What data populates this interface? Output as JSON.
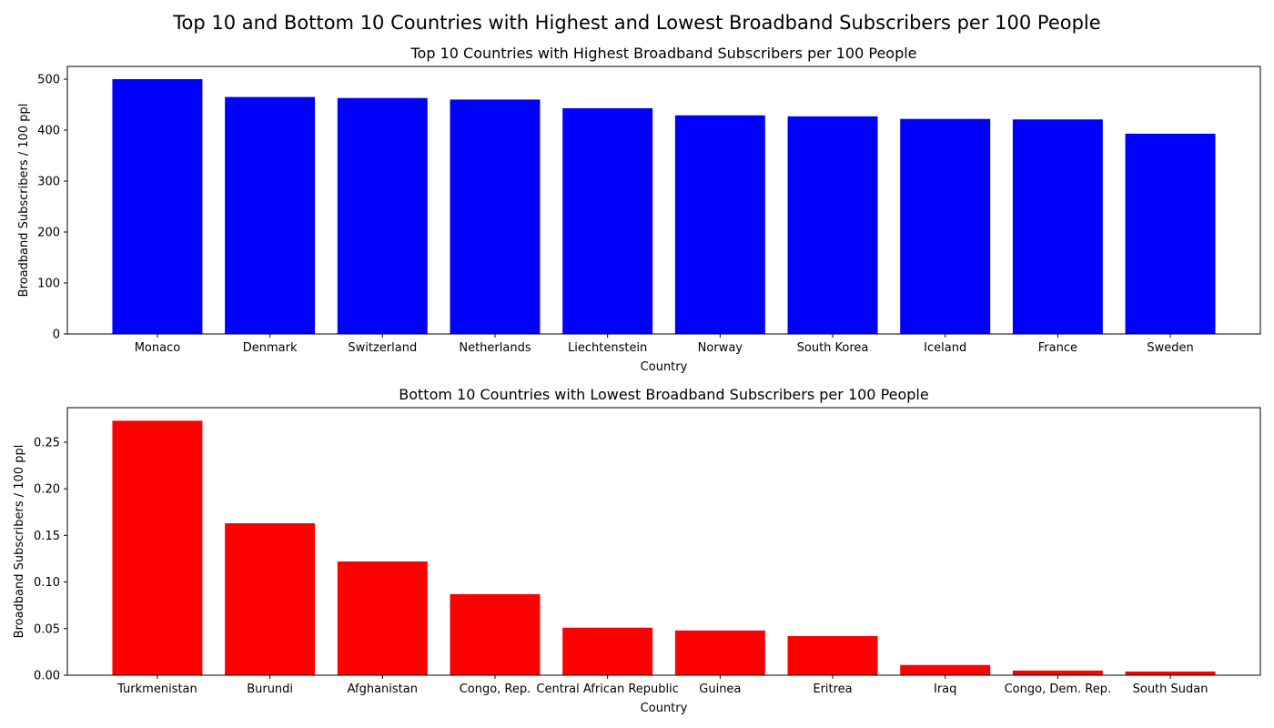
{
  "figure": {
    "suptitle": "Top 10 and Bottom 10 Countries with Highest and Lowest Broadband Subscribers per 100 People"
  },
  "chart_data": [
    {
      "type": "bar",
      "title": "Top 10 Countries with Highest Broadband Subscribers per 100 People",
      "xlabel": "Country",
      "ylabel": "Broadband Subscribers / 100 ppl",
      "categories": [
        "Monaco",
        "Denmark",
        "Switzerland",
        "Netherlands",
        "Liechtenstein",
        "Norway",
        "South Korea",
        "Iceland",
        "France",
        "Sweden"
      ],
      "values": [
        500,
        465,
        463,
        460,
        443,
        429,
        427,
        422,
        421,
        393
      ],
      "ylim": [
        0,
        525
      ],
      "yticks": [
        0,
        100,
        200,
        300,
        400,
        500
      ],
      "ytick_decimals": 0,
      "color": "#0000ff",
      "grid": false
    },
    {
      "type": "bar",
      "title": "Bottom 10 Countries with Lowest Broadband Subscribers per 100 People",
      "xlabel": "Country",
      "ylabel": "Broadband Subscribers / 100 ppl",
      "categories": [
        "Turkmenistan",
        "Burundi",
        "Afghanistan",
        "Congo, Rep.",
        "Central African Republic",
        "Guinea",
        "Eritrea",
        "Iraq",
        "Congo, Dem. Rep.",
        "South Sudan"
      ],
      "values": [
        0.273,
        0.163,
        0.122,
        0.087,
        0.051,
        0.048,
        0.042,
        0.011,
        0.005,
        0.004
      ],
      "ylim": [
        0,
        0.287
      ],
      "yticks": [
        0,
        0.05,
        0.1,
        0.15,
        0.2,
        0.25
      ],
      "ytick_decimals": 2,
      "color": "#ff0000",
      "grid": false
    }
  ]
}
